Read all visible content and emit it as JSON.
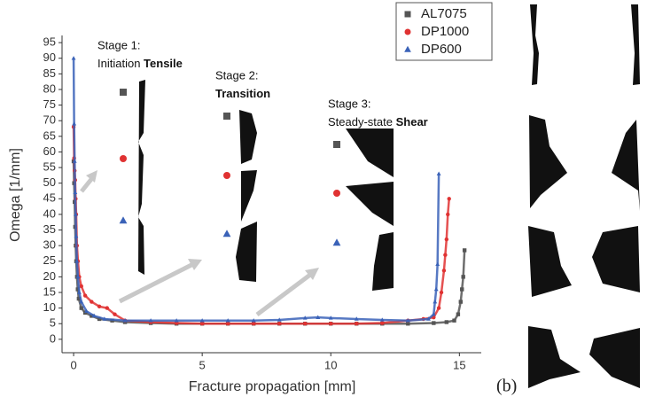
{
  "chart_data": {
    "type": "scatter",
    "xlabel": "Fracture propagation [mm]",
    "ylabel": "Omega [1/mm]",
    "xlim": [
      -0.45,
      15.85
    ],
    "ylim": [
      -4.3,
      97.3
    ],
    "xticks": [
      0,
      5,
      10,
      15
    ],
    "yticks": [
      0,
      5,
      10,
      15,
      20,
      25,
      30,
      35,
      40,
      45,
      50,
      55,
      60,
      65,
      70,
      75,
      80,
      85,
      90,
      95
    ],
    "legend_position": "upper right",
    "series": [
      {
        "name": "AL7075",
        "color": "#555555",
        "marker": "square",
        "x": [
          0,
          0.02,
          0.04,
          0.06,
          0.08,
          0.1,
          0.13,
          0.16,
          0.2,
          0.3,
          0.45,
          0.7,
          1,
          1.5,
          2,
          3,
          4,
          5,
          6,
          7,
          8,
          9,
          10,
          11,
          12,
          13,
          14,
          14.5,
          14.8,
          14.95,
          15.05,
          15.1,
          15.15,
          15.2
        ],
        "values": [
          57,
          50,
          44,
          36,
          30,
          25,
          20,
          16,
          13,
          10,
          8.5,
          7.5,
          6.5,
          6,
          5.5,
          5.2,
          5,
          5,
          5,
          5,
          5,
          5,
          5,
          5,
          5,
          5,
          5.2,
          5.5,
          6,
          8,
          12,
          16,
          20,
          28.5
        ]
      },
      {
        "name": "DP1000",
        "color": "#e03232",
        "marker": "circle",
        "x": [
          0,
          0.02,
          0.04,
          0.06,
          0.08,
          0.1,
          0.13,
          0.17,
          0.22,
          0.3,
          0.45,
          0.7,
          1,
          1.3,
          1.6,
          2,
          3,
          4,
          5,
          6,
          7,
          8,
          9,
          10,
          11,
          12,
          13,
          13.6,
          14,
          14.2,
          14.3,
          14.4,
          14.45,
          14.5,
          14.55,
          14.6
        ],
        "values": [
          68,
          58,
          54,
          51,
          45,
          40,
          30,
          25,
          20,
          17,
          14,
          12,
          10.5,
          10,
          8,
          6,
          5.5,
          5.2,
          5,
          5,
          5,
          5,
          5,
          5,
          5,
          5.2,
          6,
          6.5,
          7,
          10,
          15,
          22,
          27,
          32,
          40,
          45
        ]
      },
      {
        "name": "DP600",
        "color": "#3a62b8",
        "marker": "triangle",
        "x": [
          0,
          0.02,
          0.04,
          0.06,
          0.08,
          0.1,
          0.13,
          0.17,
          0.22,
          0.3,
          0.5,
          0.8,
          1.2,
          2,
          3,
          4,
          5,
          6,
          7,
          8,
          9,
          9.5,
          10,
          11,
          12,
          13,
          13.8,
          14,
          14.05,
          14.1,
          14.15,
          14.2
        ],
        "values": [
          90,
          69,
          57,
          47,
          40,
          33,
          25,
          20,
          15,
          12,
          9,
          7.5,
          6.5,
          6,
          6,
          6,
          6,
          6,
          6,
          6.2,
          6.8,
          7,
          6.8,
          6.5,
          6.2,
          6,
          6.5,
          8,
          12,
          16,
          24,
          53
        ]
      }
    ],
    "annotations": [
      {
        "line1": "Stage 1:",
        "line2": "Initiation ",
        "bold": "Tensile"
      },
      {
        "line1": "Stage 2:",
        "bold": "Transition"
      },
      {
        "line1": "Stage 3:",
        "line2": "Steady-state ",
        "bold": "Shear"
      }
    ],
    "panel_label": "(b)"
  }
}
